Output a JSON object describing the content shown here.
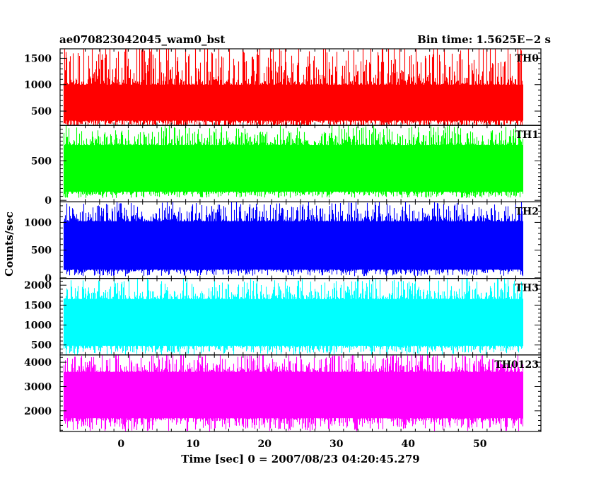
{
  "header": {
    "title": "ae070823042045_wam0_bst",
    "bin_time": "Bin time: 1.5625E−2 s"
  },
  "chart_data": {
    "type": "line",
    "xlabel": "Time [sec] 0 = 2007/08/23 04:20:45.279",
    "ylabel": "Counts/sec",
    "xlim": [
      -8.5,
      58.5
    ],
    "data_xrange": [
      -8.0,
      56.0
    ],
    "x_ticks": [
      0,
      10,
      20,
      30,
      40,
      50
    ],
    "panels": [
      {
        "name": "TH0",
        "color": "#ff0000",
        "ylim": [
          230,
          1680
        ],
        "yticks": [
          500,
          1000,
          1500
        ],
        "band": [
          130,
          1900
        ],
        "typ_low": 320,
        "typ_high": 1000
      },
      {
        "name": "TH1",
        "color": "#00ff00",
        "ylim": [
          -20,
          950
        ],
        "yticks": [
          0,
          500
        ],
        "band": [
          30,
          950
        ],
        "typ_low": 110,
        "typ_high": 700
      },
      {
        "name": "TH2",
        "color": "#0000ff",
        "ylim": [
          -10,
          1370
        ],
        "yticks": [
          0,
          500,
          1000
        ],
        "band": [
          30,
          1380
        ],
        "typ_low": 150,
        "typ_high": 1020
      },
      {
        "name": "TH3",
        "color": "#00ffff",
        "ylim": [
          250,
          2170
        ],
        "yticks": [
          500,
          1000,
          1500,
          2000
        ],
        "band": [
          250,
          2200
        ],
        "typ_low": 480,
        "typ_high": 1650
      },
      {
        "name": "TH0123",
        "color": "#ff00ff",
        "ylim": [
          1150,
          4300
        ],
        "yticks": [
          2000,
          3000,
          4000
        ],
        "band": [
          1150,
          4400
        ],
        "typ_low": 1700,
        "typ_high": 3600
      }
    ]
  }
}
